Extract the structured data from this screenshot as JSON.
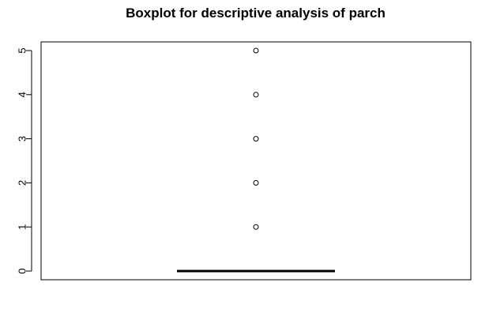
{
  "chart_data": {
    "type": "box",
    "title": "Boxplot for descriptive analysis of parch",
    "xlabel": "",
    "ylabel": "",
    "ylim": [
      0,
      5
    ],
    "yticks": [
      0,
      1,
      2,
      3,
      4,
      5
    ],
    "ytick_labels": [
      "0",
      "1",
      "2",
      "3",
      "4",
      "5"
    ],
    "grid": false,
    "series": [
      {
        "min": 0,
        "q1": 0,
        "median": 0,
        "q3": 0,
        "max": 0,
        "outliers": [
          1,
          2,
          3,
          4,
          5
        ]
      }
    ],
    "colors": {
      "stroke": "#000000",
      "background": "#ffffff"
    }
  }
}
